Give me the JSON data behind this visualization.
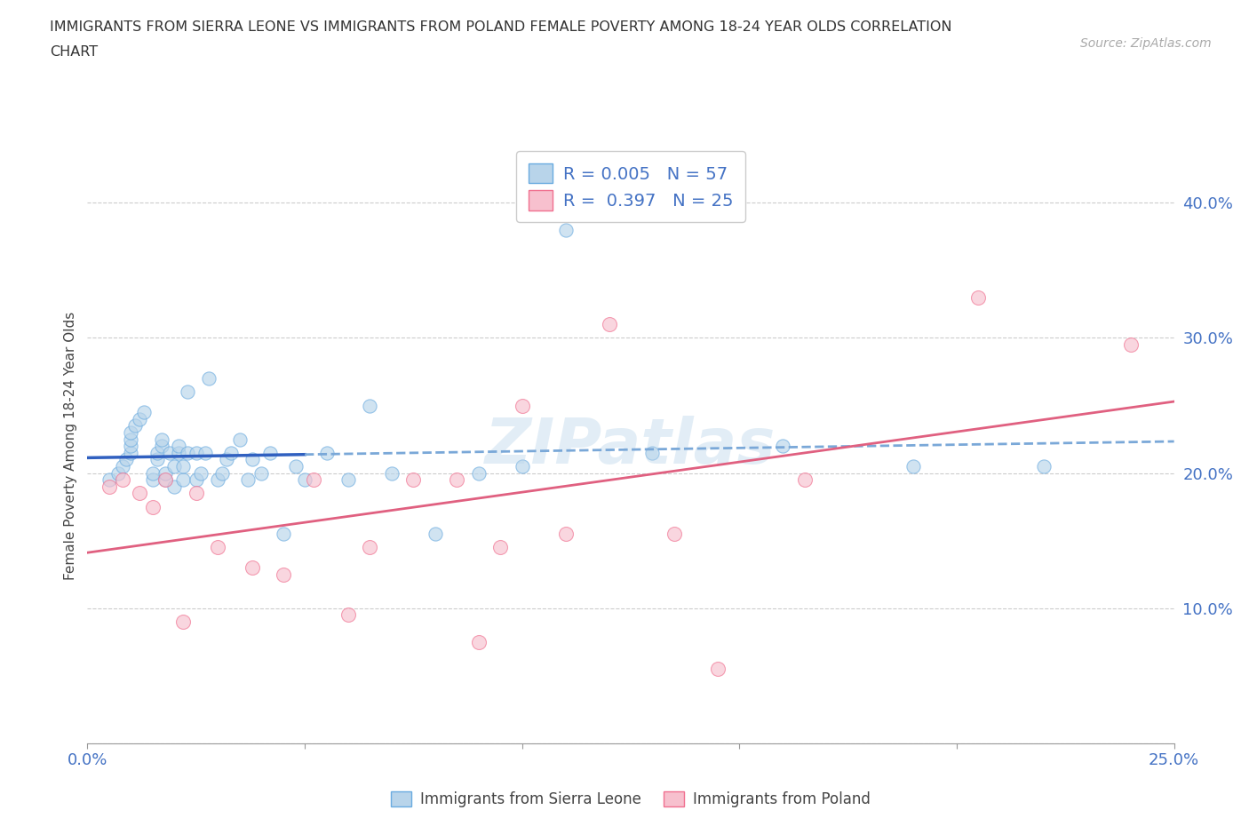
{
  "title_line1": "IMMIGRANTS FROM SIERRA LEONE VS IMMIGRANTS FROM POLAND FEMALE POVERTY AMONG 18-24 YEAR OLDS CORRELATION",
  "title_line2": "CHART",
  "source_text": "Source: ZipAtlas.com",
  "ylabel": "Female Poverty Among 18-24 Year Olds",
  "legend_sierra_leone": "Immigrants from Sierra Leone",
  "legend_poland": "Immigrants from Poland",
  "R_sierra_leone": "0.005",
  "N_sierra_leone": "57",
  "R_poland": "0.397",
  "N_poland": "25",
  "color_sierra_leone_fill": "#b8d4ea",
  "color_sierra_leone_edge": "#6aabe0",
  "color_poland_fill": "#f7c0ce",
  "color_poland_edge": "#f07090",
  "color_sl_line_solid": "#3060c0",
  "color_sl_line_dashed": "#7aa8d8",
  "color_pl_line": "#e06080",
  "color_text_blue": "#4472C4",
  "color_axis": "#999999",
  "color_grid": "#cccccc",
  "xlim": [
    0.0,
    0.25
  ],
  "ylim": [
    0.0,
    0.44
  ],
  "ytick_values": [
    0.0,
    0.1,
    0.2,
    0.3,
    0.4
  ],
  "xtick_values": [
    0.0,
    0.05,
    0.1,
    0.15,
    0.2,
    0.25
  ],
  "sl_solid_line_end_x": 0.05,
  "sierra_leone_x": [
    0.005,
    0.007,
    0.008,
    0.009,
    0.01,
    0.01,
    0.01,
    0.01,
    0.011,
    0.012,
    0.013,
    0.015,
    0.015,
    0.016,
    0.016,
    0.017,
    0.017,
    0.018,
    0.018,
    0.019,
    0.02,
    0.02,
    0.021,
    0.021,
    0.022,
    0.022,
    0.023,
    0.023,
    0.025,
    0.025,
    0.026,
    0.027,
    0.028,
    0.03,
    0.031,
    0.032,
    0.033,
    0.035,
    0.037,
    0.038,
    0.04,
    0.042,
    0.045,
    0.048,
    0.05,
    0.055,
    0.06,
    0.065,
    0.07,
    0.08,
    0.09,
    0.1,
    0.11,
    0.13,
    0.16,
    0.19,
    0.22
  ],
  "sierra_leone_y": [
    0.195,
    0.2,
    0.205,
    0.21,
    0.215,
    0.22,
    0.225,
    0.23,
    0.235,
    0.24,
    0.245,
    0.195,
    0.2,
    0.21,
    0.215,
    0.22,
    0.225,
    0.195,
    0.2,
    0.215,
    0.19,
    0.205,
    0.215,
    0.22,
    0.195,
    0.205,
    0.215,
    0.26,
    0.195,
    0.215,
    0.2,
    0.215,
    0.27,
    0.195,
    0.2,
    0.21,
    0.215,
    0.225,
    0.195,
    0.21,
    0.2,
    0.215,
    0.155,
    0.205,
    0.195,
    0.215,
    0.195,
    0.25,
    0.2,
    0.155,
    0.2,
    0.205,
    0.38,
    0.215,
    0.22,
    0.205,
    0.205
  ],
  "poland_x": [
    0.005,
    0.008,
    0.012,
    0.015,
    0.018,
    0.022,
    0.025,
    0.03,
    0.038,
    0.045,
    0.052,
    0.06,
    0.065,
    0.075,
    0.085,
    0.09,
    0.095,
    0.1,
    0.11,
    0.12,
    0.135,
    0.145,
    0.165,
    0.205,
    0.24
  ],
  "poland_y": [
    0.19,
    0.195,
    0.185,
    0.175,
    0.195,
    0.09,
    0.185,
    0.145,
    0.13,
    0.125,
    0.195,
    0.095,
    0.145,
    0.195,
    0.195,
    0.075,
    0.145,
    0.25,
    0.155,
    0.31,
    0.155,
    0.055,
    0.195,
    0.33,
    0.295
  ],
  "dot_size": 120,
  "dot_alpha": 0.65,
  "background_color": "#ffffff"
}
